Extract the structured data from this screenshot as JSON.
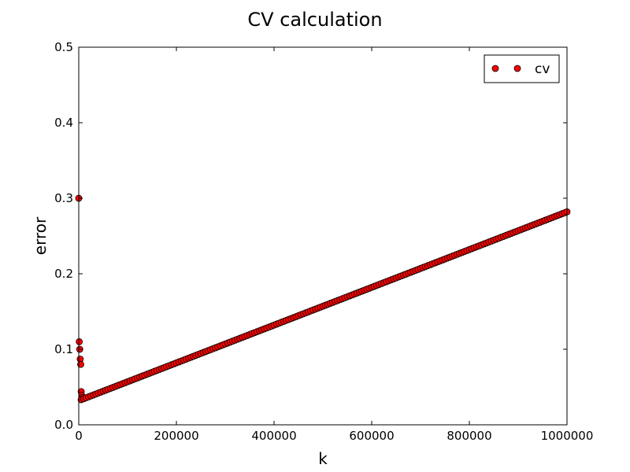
{
  "chart_data": {
    "type": "scatter",
    "title": "CV calculation",
    "xlabel": "k",
    "ylabel": "error",
    "xlim": [
      0,
      1000000
    ],
    "ylim": [
      0.0,
      0.5
    ],
    "xticks": [
      0,
      200000,
      400000,
      600000,
      800000,
      1000000
    ],
    "xtick_labels": [
      "0",
      "200000",
      "400000",
      "600000",
      "800000",
      "1000000"
    ],
    "yticks": [
      0.0,
      0.1,
      0.2,
      0.3,
      0.4,
      0.5
    ],
    "ytick_labels": [
      "0.0",
      "0.1",
      "0.2",
      "0.3",
      "0.4",
      "0.5"
    ],
    "grid": false,
    "legend": {
      "position": "top-right",
      "entries": [
        "cv"
      ]
    },
    "series": [
      {
        "name": "cv",
        "color": "#ff0000",
        "edge_color": "#000000",
        "outliers": [
          {
            "x": 0,
            "y": 0.3
          },
          {
            "x": 1000,
            "y": 0.11
          },
          {
            "x": 2000,
            "y": 0.1
          },
          {
            "x": 3000,
            "y": 0.087
          },
          {
            "x": 4000,
            "y": 0.08
          },
          {
            "x": 5000,
            "y": 0.044
          },
          {
            "x": 6000,
            "y": 0.039
          },
          {
            "x": 7000,
            "y": 0.036
          }
        ],
        "trend": {
          "x_start": 5000,
          "x_end": 1000000,
          "step": 5000,
          "y_at_x0": 0.032,
          "slope_per_unit": 2.5e-07
        }
      }
    ]
  }
}
